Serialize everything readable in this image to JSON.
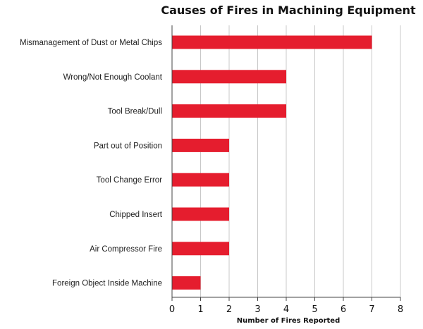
{
  "chart_data": {
    "type": "bar",
    "orientation": "horizontal",
    "title": "Causes of Fires in Machining Equipment",
    "xlabel": "Number of Fires Reported",
    "ylabel": "",
    "categories": [
      "Mismanagement of Dust or Metal Chips",
      "Wrong/Not Enough Coolant",
      "Tool Break/Dull",
      "Part out of Position",
      "Tool Change Error",
      "Chipped Insert",
      "Air Compressor Fire",
      "Foreign Object Inside Machine"
    ],
    "values": [
      7,
      4,
      4,
      2,
      2,
      2,
      2,
      1
    ],
    "xlim": [
      0,
      8
    ],
    "xticks": [
      0,
      1,
      2,
      3,
      4,
      5,
      6,
      7,
      8
    ],
    "grid": "vertical",
    "legend": "none",
    "bar_color": "#e51d2e",
    "grid_color": "#c8c8c8",
    "axis_color": "#444444"
  }
}
